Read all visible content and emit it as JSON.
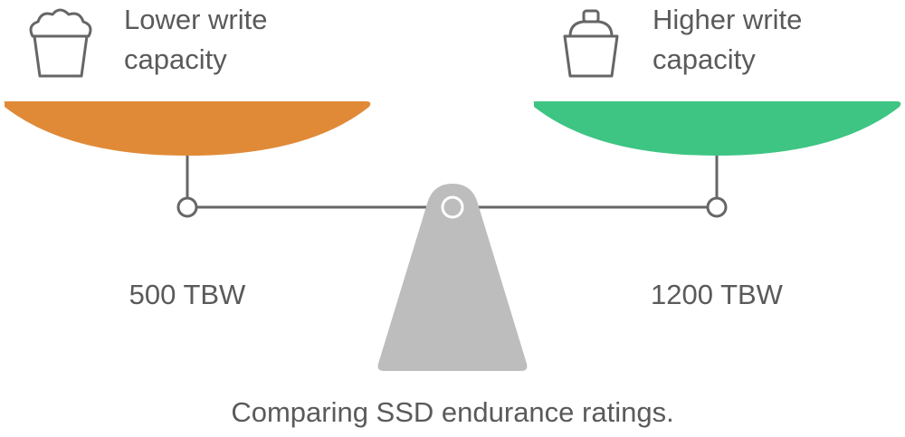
{
  "left": {
    "label_lines": [
      "Lower write",
      "capacity"
    ],
    "value": "500 TBW"
  },
  "right": {
    "label_lines": [
      "Higher write",
      "capacity"
    ],
    "value": "1200 TBW"
  },
  "caption": "Comparing SSD endurance ratings."
}
